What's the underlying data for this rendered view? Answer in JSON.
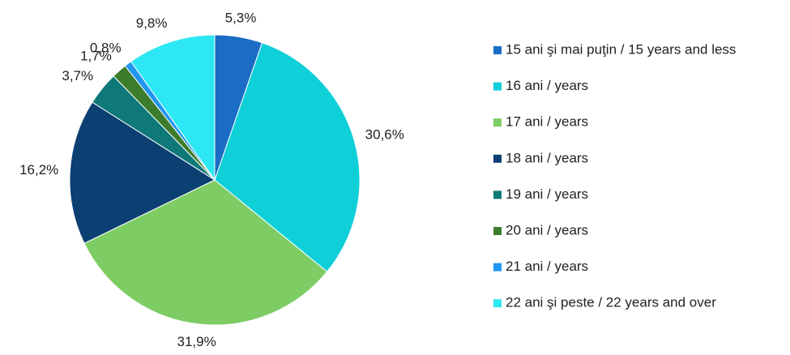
{
  "chart_data": {
    "type": "pie",
    "categories": [
      "15 ani şi mai puţin / 15 years and less",
      "16 ani / years",
      "17 ani / years",
      "18 ani / years",
      "19 ani / years",
      "20 ani / years",
      "21 ani / years",
      "22 ani şi peste / 22 years and over"
    ],
    "values": [
      5.3,
      30.6,
      31.9,
      16.2,
      3.7,
      1.7,
      0.8,
      9.8
    ],
    "value_labels": [
      "5,3%",
      "30,6%",
      "31,9%",
      "16,2%",
      "3,7%",
      "1,7%",
      "0,8%",
      "9,8%"
    ],
    "colors": [
      "#1a6cc4",
      "#0fd0d9",
      "#7dcc64",
      "#0c3f72",
      "#0f7878",
      "#3c7d2d",
      "#2196f0",
      "#2de8f4"
    ],
    "legend": "right"
  }
}
